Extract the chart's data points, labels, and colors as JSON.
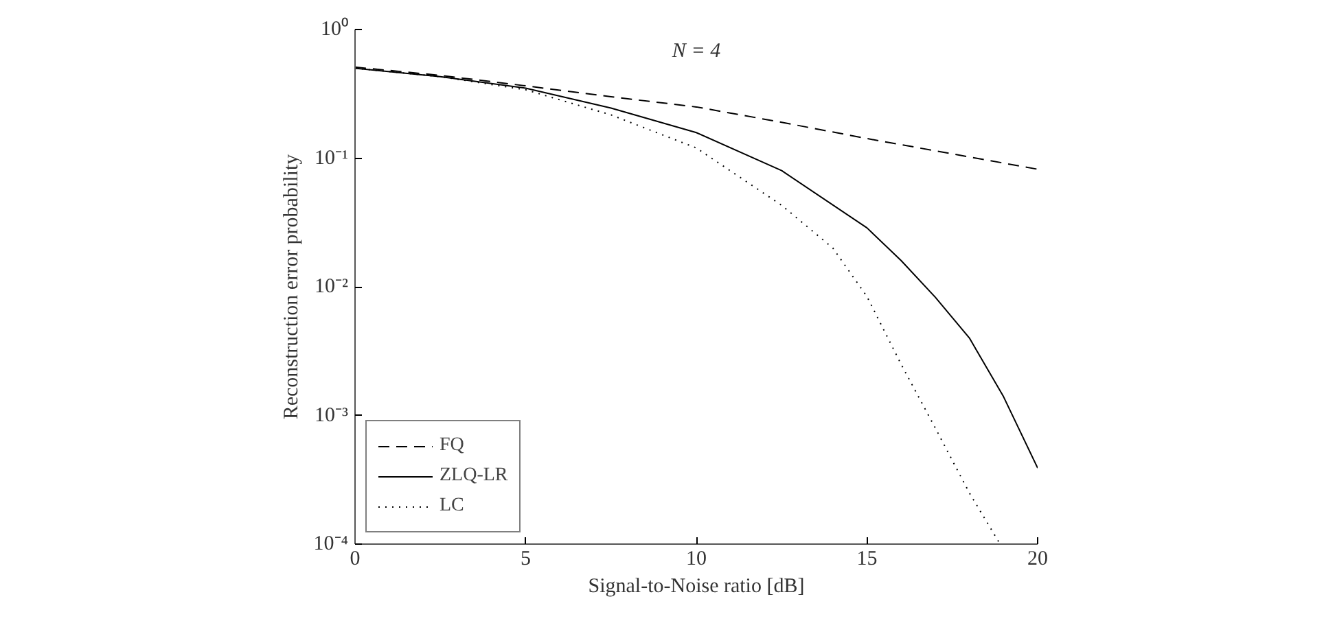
{
  "chart_data": {
    "type": "line",
    "title": "N = 4",
    "xlabel": "Signal-to-Noise ratio [dB]",
    "ylabel": "Reconstruction error probability",
    "log": true,
    "grid": false,
    "legend": "bottom left",
    "xlim": [
      0,
      20
    ],
    "xticks": [
      0,
      5,
      10,
      15,
      20
    ],
    "ylim": [
      0.0001,
      1
    ],
    "yticks": [
      {
        "value": 1,
        "label": "10⁰"
      },
      {
        "value": 0.1,
        "label": "10⁻¹"
      },
      {
        "value": 0.01,
        "label": "10⁻²"
      },
      {
        "value": 0.001,
        "label": "10⁻³"
      },
      {
        "value": 0.0001,
        "label": "10⁻⁴"
      }
    ],
    "series": [
      {
        "name": "FQ",
        "color": "#000000",
        "line_style": "dashed",
        "x": [
          0,
          2.5,
          5,
          7.5,
          10,
          12.5,
          15,
          17.5,
          20
        ],
        "values": [
          0.51,
          0.44,
          0.365,
          0.3,
          0.25,
          0.19,
          0.142,
          0.108,
          0.082
        ]
      },
      {
        "name": "ZLQ-LR",
        "color": "#000000",
        "line_style": "solid",
        "x": [
          0,
          2.5,
          5,
          7.5,
          10,
          12.5,
          15,
          16,
          17,
          18,
          19,
          20
        ],
        "values": [
          0.5,
          0.43,
          0.35,
          0.245,
          0.158,
          0.08,
          0.0287,
          0.016,
          0.0083,
          0.004,
          0.0014,
          0.00039
        ]
      },
      {
        "name": "LC",
        "color": "#000000",
        "line_style": "dotted",
        "x": [
          0,
          2.5,
          5,
          7.5,
          10,
          12.5,
          14,
          15,
          16,
          17,
          18,
          18.9
        ],
        "values": [
          0.5,
          0.43,
          0.34,
          0.217,
          0.12,
          0.043,
          0.02,
          0.0084,
          0.0025,
          0.0008,
          0.00025,
          0.0001
        ]
      }
    ]
  }
}
